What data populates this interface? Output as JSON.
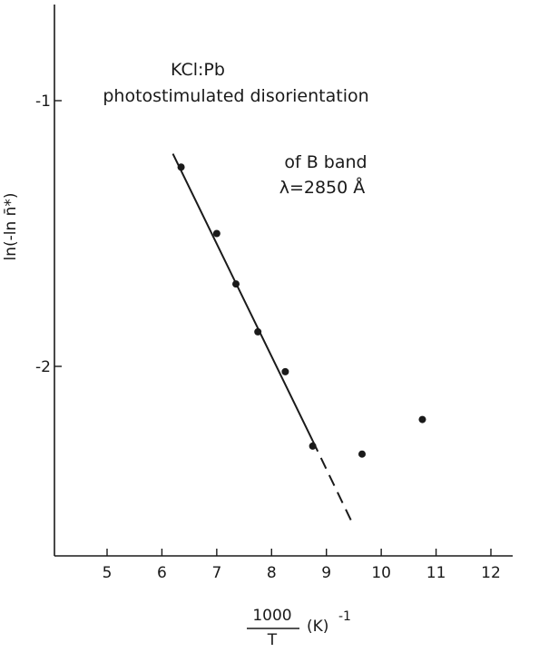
{
  "chart_data": {
    "type": "scatter",
    "annotations": [
      "KCl:Pb",
      "photostimulated disorientation",
      "of B band",
      "λ=2850 Å"
    ],
    "xlabel": {
      "numerator": "1000",
      "denominator": "T",
      "unit": "(K)",
      "exponent": "-1"
    },
    "ylabel": "ln(-ln n̄*)",
    "xlim": [
      4,
      13
    ],
    "ylim": [
      -2.75,
      -0.55
    ],
    "x_ticks": [
      5,
      6,
      7,
      8,
      9,
      10,
      11,
      12
    ],
    "y_ticks": [
      -1,
      -2
    ],
    "series": [
      {
        "points": [
          {
            "x": 6.35,
            "y": -1.25
          },
          {
            "x": 7.0,
            "y": -1.5
          },
          {
            "x": 7.35,
            "y": -1.69
          },
          {
            "x": 7.75,
            "y": -1.87
          },
          {
            "x": 8.25,
            "y": -2.02
          },
          {
            "x": 8.75,
            "y": -2.3
          },
          {
            "x": 9.65,
            "y": -2.33
          },
          {
            "x": 10.75,
            "y": -2.2
          }
        ]
      }
    ],
    "fit_line": {
      "solid": {
        "x": [
          6.2,
          8.75
        ],
        "y": [
          -1.2,
          -2.28
        ]
      },
      "dashed": {
        "x": [
          8.75,
          9.45
        ],
        "y": [
          -2.28,
          -2.58
        ]
      }
    },
    "grid": false
  }
}
